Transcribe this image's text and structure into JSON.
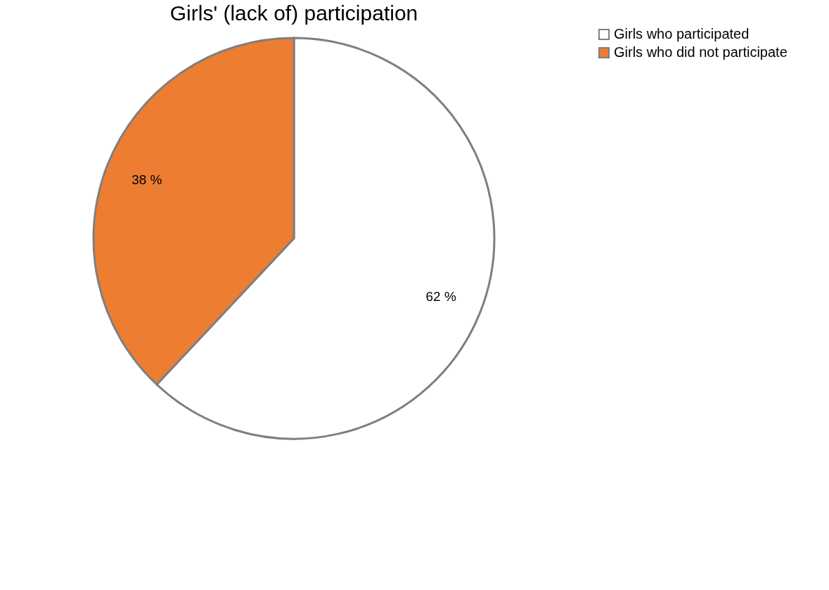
{
  "chart_data": {
    "type": "pie",
    "title": "Girls' (lack of) participation",
    "categories": [
      "Girls who participated",
      "Girls who did not participate"
    ],
    "values": [
      62,
      38
    ],
    "colors": [
      "#ffffff",
      "#ed7d31"
    ],
    "value_labels": [
      "62 %",
      "38 %"
    ],
    "legend": "right"
  }
}
